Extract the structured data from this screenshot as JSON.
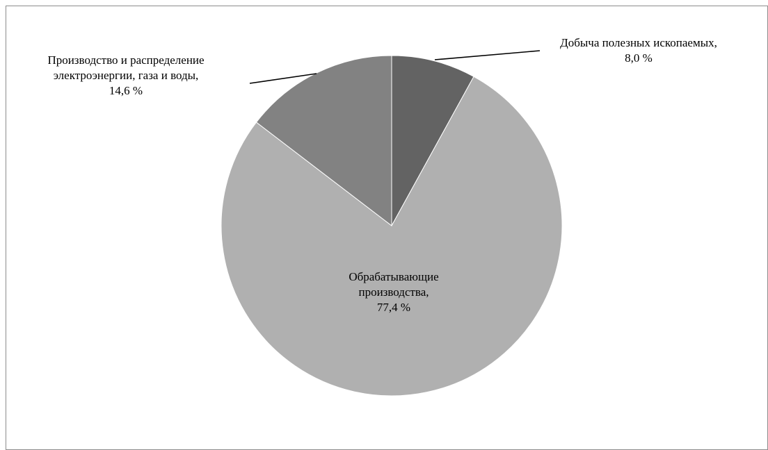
{
  "chart_data": {
    "type": "pie",
    "title": "",
    "legend": "none",
    "slices": [
      {
        "name": "Добыча полезных ископаемых",
        "value": 8.0,
        "value_label": "8,0 %",
        "label_lines": [
          "Добыча полезных ископаемых,",
          "8,0 %"
        ],
        "color": "#636363"
      },
      {
        "name": "Обрабатывающие производства",
        "value": 77.4,
        "value_label": "77,4 %",
        "label_lines": [
          "Обрабатывающие",
          "производства,",
          "77,4 %"
        ],
        "color": "#b0b0b0"
      },
      {
        "name": "Производство и распределение электроэнергии, газа и воды",
        "value": 14.6,
        "value_label": "14,6 %",
        "label_lines": [
          "Производство и распределение",
          "электроэнергии, газа и воды,",
          "14,6 %"
        ],
        "color": "#828282"
      }
    ]
  }
}
